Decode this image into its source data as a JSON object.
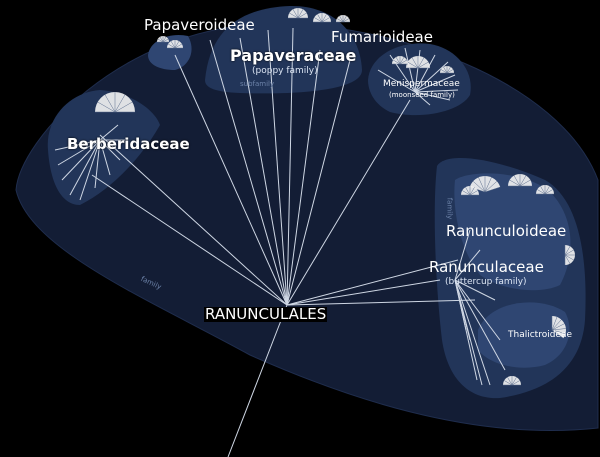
{
  "order": {
    "name": "RANUNCULALES"
  },
  "families": {
    "papaveraceae": {
      "name": "Papaveraceae",
      "common": "(poppy family)",
      "rank_tag": "subfamily",
      "subfamilies": {
        "papaveroideae": "Papaveroideae",
        "fumarioideae": "Fumarioideae"
      }
    },
    "menispermaceae": {
      "name": "Menispermaceae",
      "common": "(moonseed family)"
    },
    "berberidaceae": {
      "name": "Berberidaceae"
    },
    "ranunculaceae": {
      "name": "Ranunculaceae",
      "common": "(buttercup family)",
      "rank_tag": "family",
      "subfamilies": {
        "ranunculoideae": "Ranunculoideae",
        "thalictroideae": "Thalictroideae"
      }
    }
  },
  "order_rank_tag": "family",
  "colors": {
    "background": "#000000",
    "order_region": "#131d35",
    "family_region": "#223559",
    "subfamily_region": "#2f4672",
    "branch": "#cfd7e4",
    "fan": "#f0f0f0"
  }
}
